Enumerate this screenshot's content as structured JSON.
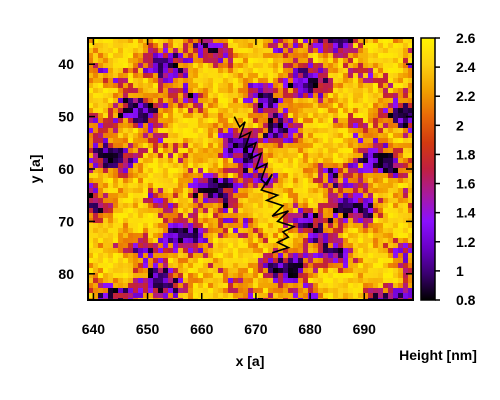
{
  "chart_data": {
    "type": "heatmap",
    "title": "",
    "xlabel": "x [a]",
    "ylabel": "y [a]",
    "xlim": [
      639,
      699
    ],
    "ylim": [
      35,
      85
    ],
    "y_axis_inverted": true,
    "x_ticks": [
      640,
      650,
      660,
      670,
      680,
      690
    ],
    "y_ticks": [
      40,
      50,
      60,
      70,
      80
    ],
    "colorbar": {
      "label": "Height [nm]",
      "range": [
        0.8,
        2.6
      ],
      "ticks": [
        0.8,
        1,
        1.2,
        1.4,
        1.6,
        1.8,
        2,
        2.2,
        2.4,
        2.6
      ],
      "colormap": [
        "#000000",
        "#3a0070",
        "#6a00c8",
        "#8a10ff",
        "#a81aa0",
        "#c02040",
        "#d23a10",
        "#e86808",
        "#f2a000",
        "#fcd010",
        "#fff400"
      ]
    },
    "grid": false,
    "trajectory": {
      "color": "#000000",
      "x": [
        666,
        667,
        668,
        667,
        669,
        668,
        670,
        669,
        671,
        670,
        672,
        671,
        672,
        673,
        671,
        674,
        672,
        675,
        673,
        676,
        674,
        677,
        675,
        676,
        674,
        676,
        673
      ],
      "y": [
        50,
        52,
        51,
        54,
        53,
        56,
        55,
        58,
        57,
        60,
        59,
        62,
        63,
        61,
        64,
        65,
        66,
        67,
        69,
        68,
        70,
        71,
        72,
        73,
        74,
        75,
        76
      ]
    }
  }
}
